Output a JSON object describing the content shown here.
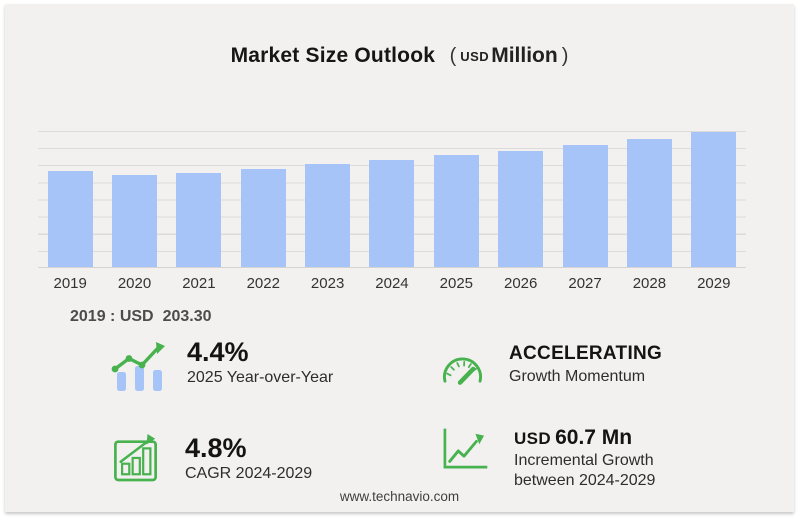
{
  "header": {
    "title": "Market Size Outlook",
    "unit_open": "(",
    "unit_currency": "USD",
    "unit_scale": "Million",
    "unit_close": ")"
  },
  "chart_data": {
    "type": "bar",
    "title": "Market Size Outlook",
    "unit": "USD Million",
    "categories": [
      "2019",
      "2020",
      "2021",
      "2022",
      "2023",
      "2024",
      "2025",
      "2026",
      "2027",
      "2028",
      "2029"
    ],
    "values": [
      203.3,
      196.1,
      200.4,
      208.9,
      218.4,
      227.1,
      237.1,
      247.3,
      259.9,
      271.4,
      287.8
    ],
    "ylim": [
      0,
      289
    ],
    "grid": true,
    "legend": false,
    "xlabel": "",
    "ylabel": ""
  },
  "key_stat": {
    "label": "2019 : USD",
    "value": "203.30"
  },
  "stats": [
    {
      "value": "4.4%",
      "label": "2025 Year-over-Year",
      "icon": "trend-line-over-bars-icon"
    },
    {
      "value": "ACCELERATING",
      "label": "Growth Momentum",
      "icon": "speedometer-icon"
    },
    {
      "value": "4.8%",
      "label": "CAGR 2024-2029",
      "icon": "bar-chart-growth-arrow-icon"
    },
    {
      "value_prefix": "USD",
      "value": "60.7 Mn",
      "label": "Incremental Growth",
      "label2": "between 2024-2029",
      "icon": "line-graph-arrow-icon"
    }
  ],
  "footer": {
    "website": "www.technavio.com"
  },
  "colors": {
    "background": "#f2f1f0",
    "bar_fill": "#a7c4f8",
    "gridline": "#dcdbda",
    "accent_green": "#47b24e"
  }
}
